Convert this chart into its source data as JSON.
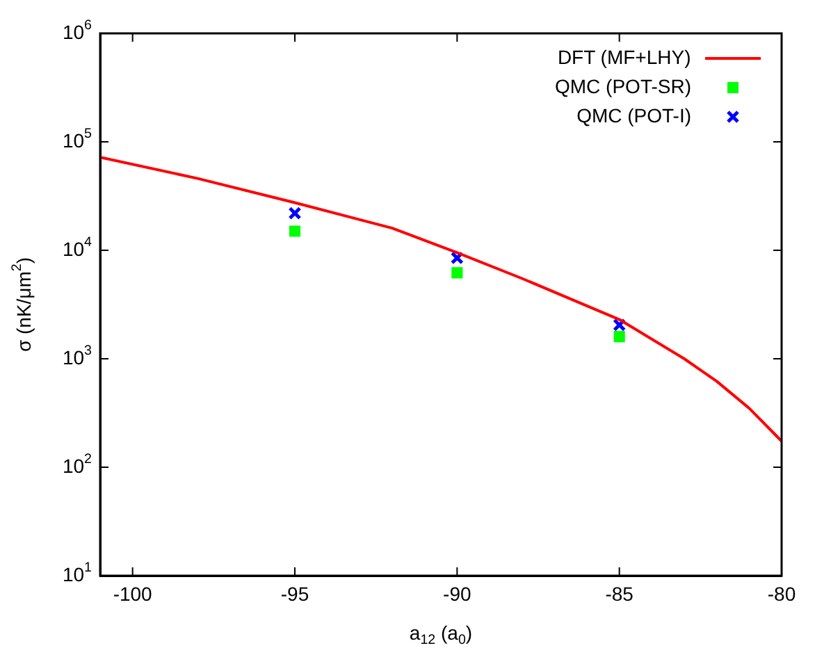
{
  "chart_data": {
    "type": "line",
    "xlabel": "a$_{12}$ (a$_{0}$)",
    "ylabel": "σ (nK/μm$^{2}$)",
    "xlim": [
      -101,
      -80
    ],
    "xticks": [
      -100,
      -95,
      -90,
      -85,
      -80
    ],
    "ylim": [
      10,
      1000000
    ],
    "yticks": [
      {
        "value": 10,
        "label": "10$^{1}$"
      },
      {
        "value": 100,
        "label": "10$^{2}$"
      },
      {
        "value": 1000,
        "label": "10$^{3}$"
      },
      {
        "value": 10000,
        "label": "10$^{4}$"
      },
      {
        "value": 100000,
        "label": "10$^{5}$"
      },
      {
        "value": 1000000,
        "label": "10$^{6}$"
      }
    ],
    "log": "y",
    "grid": false,
    "legend": "top right",
    "series": [
      {
        "name": "DFT (MF+LHY)",
        "type": "line",
        "color": "#ff0000",
        "marker": "none",
        "line_style": "solid",
        "x": [
          -101,
          -98,
          -95,
          -92,
          -90,
          -88,
          -85,
          -83,
          -82,
          -81,
          -80
        ],
        "values": [
          72000,
          46000,
          27500,
          16000,
          9500,
          5500,
          2300,
          1000,
          620,
          350,
          174
        ]
      },
      {
        "name": "QMC (POT-SR)",
        "type": "scatter",
        "color": "#00ff00",
        "marker": "square",
        "x": [
          -95,
          -90,
          -85
        ],
        "values": [
          15000,
          6200,
          1600
        ]
      },
      {
        "name": "QMC (POT-I)",
        "type": "scatter",
        "color": "#0000ff",
        "marker": "cross",
        "x": [
          -95,
          -90,
          -85
        ],
        "values": [
          22000,
          8500,
          2050
        ]
      }
    ]
  }
}
